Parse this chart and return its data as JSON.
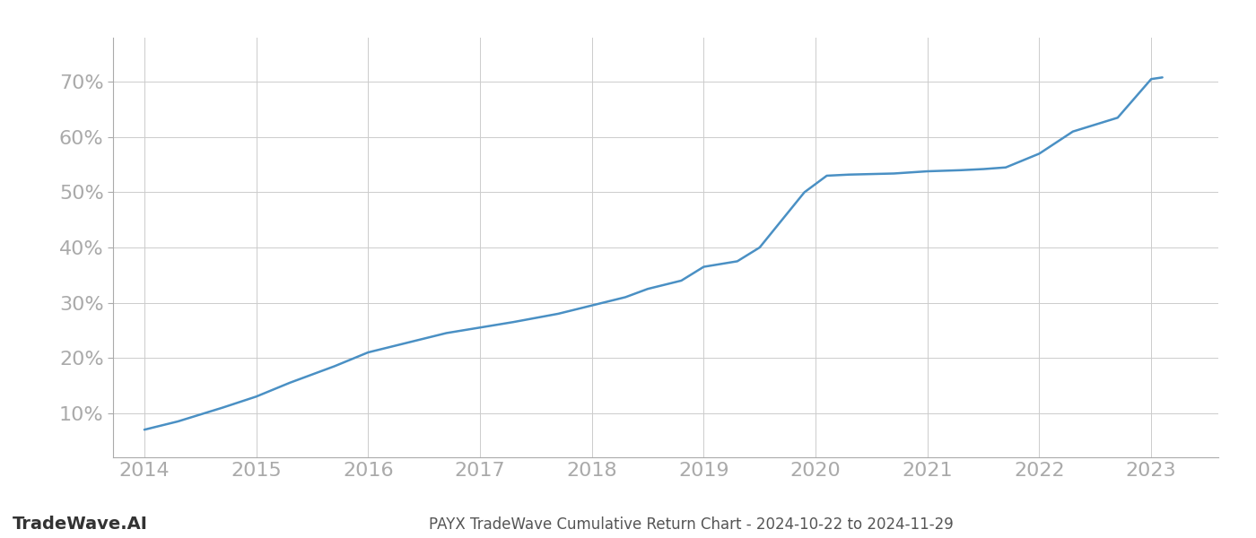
{
  "x_years": [
    2014.0,
    2014.3,
    2014.7,
    2015.0,
    2015.3,
    2015.7,
    2016.0,
    2016.3,
    2016.7,
    2017.0,
    2017.3,
    2017.7,
    2018.0,
    2018.3,
    2018.5,
    2018.8,
    2019.0,
    2019.15,
    2019.3,
    2019.5,
    2019.7,
    2019.9,
    2020.1,
    2020.3,
    2020.5,
    2020.7,
    2021.0,
    2021.3,
    2021.5,
    2021.7,
    2022.0,
    2022.3,
    2022.7,
    2023.0,
    2023.1
  ],
  "y_values": [
    7.0,
    8.5,
    11.0,
    13.0,
    15.5,
    18.5,
    21.0,
    22.5,
    24.5,
    25.5,
    26.5,
    28.0,
    29.5,
    31.0,
    32.5,
    34.0,
    36.5,
    37.0,
    37.5,
    40.0,
    45.0,
    50.0,
    53.0,
    53.2,
    53.3,
    53.4,
    53.8,
    54.0,
    54.2,
    54.5,
    57.0,
    61.0,
    63.5,
    70.5,
    70.8
  ],
  "line_color": "#4a90c4",
  "line_width": 1.8,
  "background_color": "#ffffff",
  "grid_color": "#cccccc",
  "title": "PAYX TradeWave Cumulative Return Chart - 2024-10-22 to 2024-11-29",
  "watermark": "TradeWave.AI",
  "yticks": [
    10,
    20,
    30,
    40,
    50,
    60,
    70
  ],
  "xticks": [
    2014,
    2015,
    2016,
    2017,
    2018,
    2019,
    2020,
    2021,
    2022,
    2023
  ],
  "ylim": [
    2,
    78
  ],
  "xlim": [
    2013.72,
    2023.6
  ],
  "tick_label_color": "#aaaaaa",
  "title_color": "#555555",
  "watermark_color": "#333333",
  "title_fontsize": 12,
  "tick_fontsize": 16,
  "watermark_fontsize": 14
}
